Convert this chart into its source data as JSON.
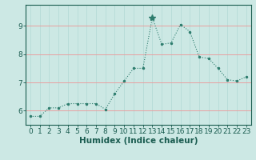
{
  "x": [
    0,
    1,
    2,
    3,
    4,
    5,
    6,
    7,
    8,
    9,
    10,
    11,
    12,
    13,
    14,
    15,
    16,
    17,
    18,
    19,
    20,
    21,
    22,
    23
  ],
  "y": [
    5.8,
    5.8,
    6.1,
    6.1,
    6.25,
    6.25,
    6.25,
    6.25,
    6.05,
    6.6,
    7.05,
    7.5,
    7.5,
    9.3,
    8.35,
    8.4,
    9.05,
    8.8,
    7.9,
    7.85,
    7.5,
    7.1,
    7.05,
    7.2
  ],
  "line_color": "#2e7d6e",
  "marker": "*",
  "bg_color": "#cce8e4",
  "grid_hcolor": "#e8a0a0",
  "grid_vcolor": "#b8dcd8",
  "xlabel": "Humidex (Indice chaleur)",
  "ylim": [
    5.5,
    9.75
  ],
  "xlim": [
    -0.5,
    23.5
  ],
  "yticks": [
    6,
    7,
    8,
    9
  ],
  "xticks": [
    0,
    1,
    2,
    3,
    4,
    5,
    6,
    7,
    8,
    9,
    10,
    11,
    12,
    13,
    14,
    15,
    16,
    17,
    18,
    19,
    20,
    21,
    22,
    23
  ],
  "tick_color": "#1a5c50",
  "label_fontsize": 7.5,
  "tick_fontsize": 6.5
}
